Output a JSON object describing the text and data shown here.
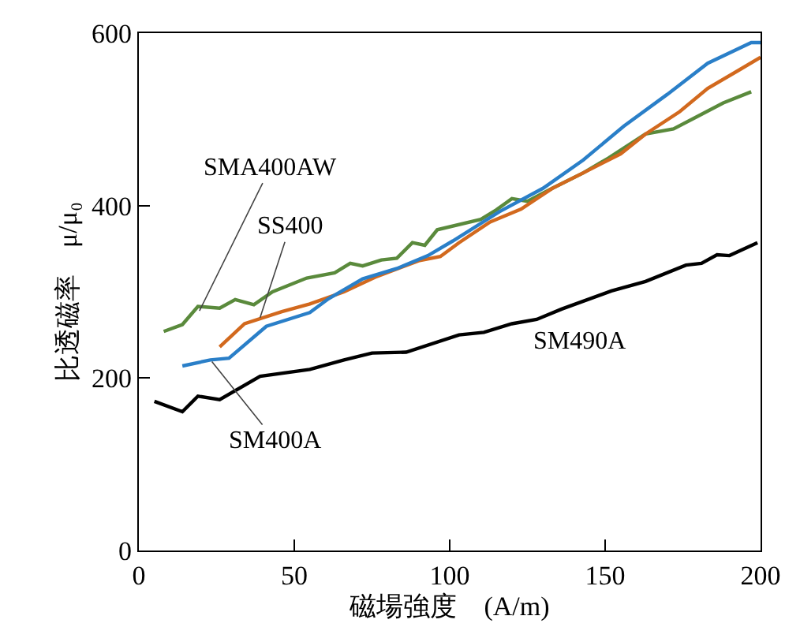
{
  "chart_data": {
    "type": "line",
    "xlabel": "磁場強度　(A/m)",
    "ylabel": "比透磁率　μ/μ₀",
    "xlim": [
      0,
      200
    ],
    "xticks": [
      0,
      50,
      100,
      150,
      200
    ],
    "ylim": [
      0,
      600
    ],
    "yticks": [
      0,
      200,
      400,
      600
    ],
    "marker": "none",
    "line_style": "solid",
    "series": [
      {
        "color": "#5a8a3c",
        "x": [
          8,
          14,
          19,
          26,
          31,
          37,
          43,
          54,
          63,
          68,
          72,
          78,
          83,
          88,
          92,
          96,
          110,
          115,
          120,
          125,
          133,
          143,
          151,
          163,
          172,
          180,
          188,
          197
        ],
        "values": [
          254,
          262,
          283,
          281,
          291,
          285,
          300,
          316,
          322,
          333,
          330,
          337,
          339,
          357,
          354,
          372,
          384,
          395,
          408,
          405,
          420,
          438,
          455,
          483,
          489,
          504,
          519,
          532
        ]
      },
      {
        "color": "#d2691e",
        "x": [
          26,
          34,
          46,
          55,
          66,
          76,
          90,
          97,
          103,
          113,
          123,
          133,
          143,
          155,
          163,
          174,
          183,
          193,
          200
        ],
        "values": [
          236,
          263,
          277,
          286,
          300,
          317,
          336,
          341,
          357,
          381,
          396,
          420,
          438,
          460,
          483,
          509,
          536,
          557,
          572
        ]
      },
      {
        "color": "#2a7fc8",
        "x": [
          14,
          23,
          29,
          41,
          55,
          61,
          72,
          83,
          93,
          101,
          116,
          130,
          143,
          156,
          170,
          183,
          197,
          200
        ],
        "values": [
          214,
          221,
          223,
          260,
          276,
          292,
          315,
          327,
          342,
          359,
          393,
          420,
          453,
          492,
          529,
          565,
          589,
          589
        ]
      },
      {
        "color": "#000000",
        "x": [
          5,
          14,
          19,
          26,
          39,
          55,
          66,
          75,
          86,
          103,
          111,
          120,
          128,
          136,
          152,
          163,
          176,
          181,
          186,
          190,
          199
        ],
        "values": [
          173,
          161,
          179,
          175,
          202,
          210,
          221,
          229,
          230,
          250,
          253,
          263,
          268,
          280,
          301,
          312,
          331,
          333,
          343,
          342,
          357
        ]
      }
    ],
    "annotations": [
      {
        "text": "SMA400AW",
        "x": 19.5,
        "y": 278
      },
      {
        "text": "SS400",
        "x": 39,
        "y": 270
      },
      {
        "text": "SM400A",
        "x": 23.5,
        "y": 219
      },
      "SM490A"
    ]
  }
}
